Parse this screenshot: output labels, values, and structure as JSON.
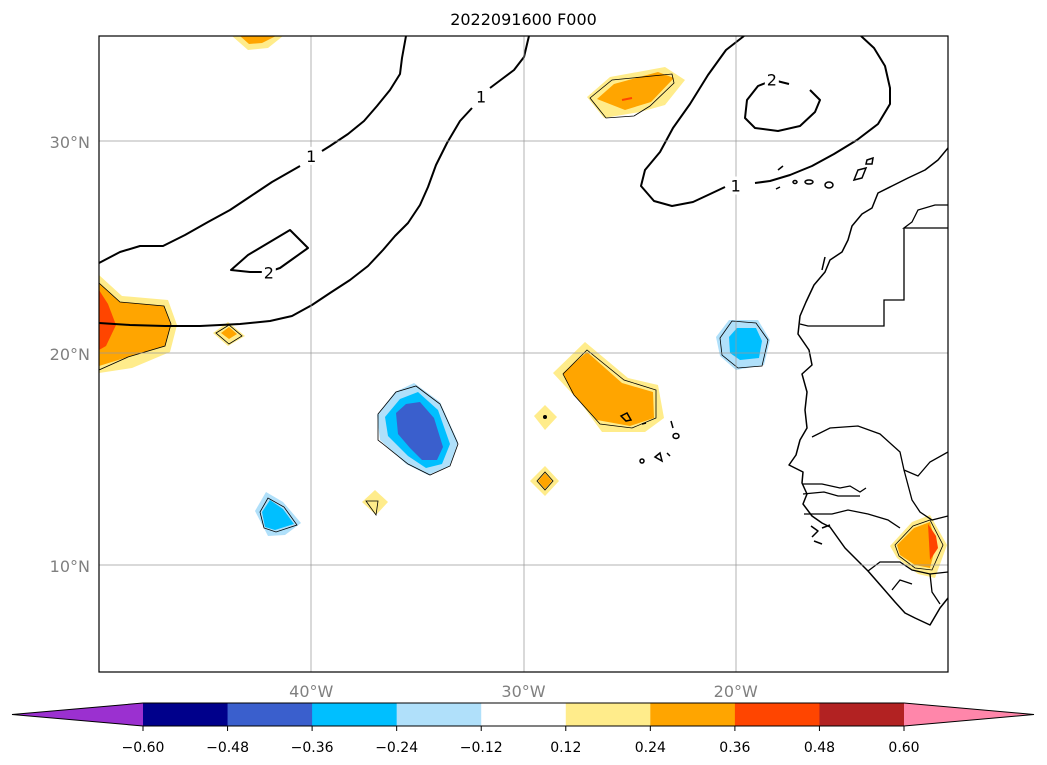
{
  "title": "2022091600 F000",
  "map": {
    "lon_range": [
      -50,
      -10
    ],
    "lat_range": [
      5,
      35
    ],
    "lon_ticks": [
      {
        "value": -40,
        "label": "40°W"
      },
      {
        "value": -30,
        "label": "30°W"
      },
      {
        "value": -20,
        "label": "20°W"
      }
    ],
    "lat_ticks": [
      {
        "value": 10,
        "label": "10°N"
      },
      {
        "value": 20,
        "label": "20°N"
      },
      {
        "value": 30,
        "label": "30°N"
      }
    ],
    "contour_labels": [
      {
        "text": "1",
        "lon": -40.0,
        "lat": 29.3
      },
      {
        "text": "1",
        "lon": -32.0,
        "lat": 32.1
      },
      {
        "text": "1",
        "lon": -20.0,
        "lat": 27.9
      },
      {
        "text": "2",
        "lon": -42.0,
        "lat": 23.8
      },
      {
        "text": "2",
        "lon": -18.3,
        "lat": 32.9
      }
    ]
  },
  "colorbar": {
    "colors": [
      "#9b30d0",
      "#00008b",
      "#3a5fcd",
      "#00bfff",
      "#b0e0fa",
      "#ffffff",
      "#ffec8b",
      "#ffa500",
      "#ff4500",
      "#b22222",
      "#ff86aa"
    ],
    "tick_labels": [
      "−0.60",
      "−0.48",
      "−0.36",
      "−0.24",
      "−0.12",
      "0.12",
      "0.24",
      "0.36",
      "0.48",
      "0.60"
    ]
  }
}
